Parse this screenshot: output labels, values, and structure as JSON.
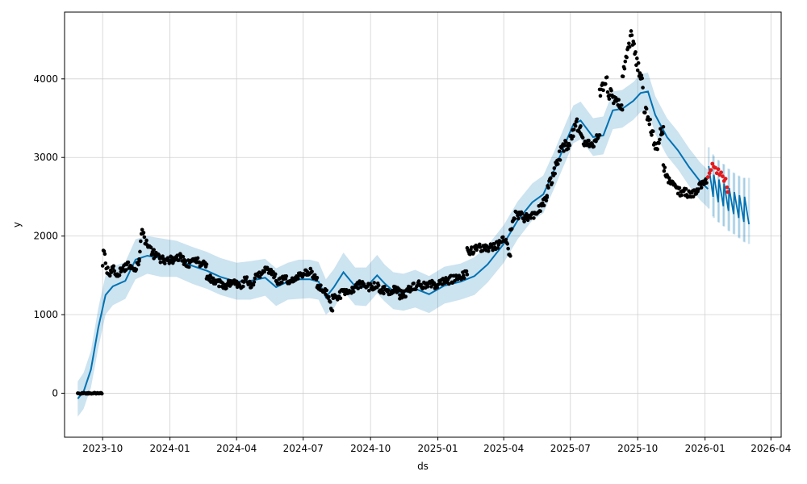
{
  "chart_data": {
    "type": "line",
    "title": "",
    "xlabel": "ds",
    "ylabel": "y",
    "xlim": [
      "2023-08-10",
      "2026-04-15"
    ],
    "ylim": [
      -560,
      4850
    ],
    "grid": true,
    "x_ticks": [
      "2023-10-01",
      "2024-01-01",
      "2024-04-01",
      "2024-07-01",
      "2024-10-01",
      "2025-01-01",
      "2025-04-01",
      "2025-07-01",
      "2025-10-01",
      "2026-01-01",
      "2026-04-01"
    ],
    "x_tick_labels": [
      "2023-10",
      "2024-01",
      "2024-04",
      "2024-07",
      "2024-10",
      "2025-01",
      "2025-04",
      "2025-07",
      "2025-10",
      "2026-01",
      "2026-04"
    ],
    "y_ticks": [
      0,
      1000,
      2000,
      3000,
      4000
    ],
    "y_tick_labels": [
      "0",
      "1000",
      "2000",
      "3000",
      "4000"
    ],
    "colors": {
      "forecast": "#0072b2",
      "interval": "#0072b2",
      "observed": "#000000",
      "actual_future": "#e41a1c"
    },
    "forecast": {
      "x": [
        "2023-08-28",
        "2023-09-05",
        "2023-09-15",
        "2023-09-25",
        "2023-10-05",
        "2023-10-15",
        "2023-11-01",
        "2023-11-15",
        "2023-12-01",
        "2023-12-20",
        "2024-01-10",
        "2024-02-01",
        "2024-02-20",
        "2024-03-10",
        "2024-04-01",
        "2024-04-20",
        "2024-05-10",
        "2024-05-25",
        "2024-06-10",
        "2024-06-25",
        "2024-07-10",
        "2024-07-22",
        "2024-08-01",
        "2024-08-12",
        "2024-08-25",
        "2024-09-10",
        "2024-09-25",
        "2024-10-10",
        "2024-10-20",
        "2024-11-01",
        "2024-11-15",
        "2024-12-01",
        "2024-12-20",
        "2025-01-10",
        "2025-02-01",
        "2025-02-20",
        "2025-03-10",
        "2025-04-01",
        "2025-04-20",
        "2025-05-10",
        "2025-05-25",
        "2025-06-10",
        "2025-06-25",
        "2025-07-05",
        "2025-07-15",
        "2025-08-01",
        "2025-08-15",
        "2025-08-28",
        "2025-09-10",
        "2025-09-25",
        "2025-10-05",
        "2025-10-15",
        "2025-10-25",
        "2025-11-10",
        "2025-11-25",
        "2025-12-10",
        "2025-12-25",
        "2026-01-05"
      ],
      "y": [
        -70,
        20,
        300,
        830,
        1250,
        1360,
        1430,
        1700,
        1750,
        1720,
        1700,
        1620,
        1560,
        1480,
        1420,
        1430,
        1470,
        1350,
        1420,
        1450,
        1450,
        1420,
        1220,
        1350,
        1540,
        1360,
        1350,
        1500,
        1400,
        1300,
        1280,
        1330,
        1260,
        1370,
        1420,
        1490,
        1640,
        1900,
        2200,
        2430,
        2530,
        2860,
        3200,
        3420,
        3470,
        3260,
        3280,
        3600,
        3620,
        3720,
        3820,
        3840,
        3540,
        3260,
        3090,
        2880,
        2700,
        2600
      ]
    },
    "interval": {
      "x": [
        "2023-08-28",
        "2023-09-05",
        "2023-09-15",
        "2023-09-25",
        "2023-10-05",
        "2023-10-15",
        "2023-11-01",
        "2023-11-15",
        "2023-12-01",
        "2023-12-20",
        "2024-01-10",
        "2024-02-01",
        "2024-02-20",
        "2024-03-10",
        "2024-04-01",
        "2024-04-20",
        "2024-05-10",
        "2024-05-25",
        "2024-06-10",
        "2024-06-25",
        "2024-07-10",
        "2024-07-22",
        "2024-08-01",
        "2024-08-12",
        "2024-08-25",
        "2024-09-10",
        "2024-09-25",
        "2024-10-10",
        "2024-10-20",
        "2024-11-01",
        "2024-11-15",
        "2024-12-01",
        "2024-12-20",
        "2025-01-10",
        "2025-02-01",
        "2025-02-20",
        "2025-03-10",
        "2025-04-01",
        "2025-04-20",
        "2025-05-10",
        "2025-05-25",
        "2025-06-10",
        "2025-06-25",
        "2025-07-05",
        "2025-07-15",
        "2025-08-01",
        "2025-08-15",
        "2025-08-28",
        "2025-09-10",
        "2025-09-25",
        "2025-10-05",
        "2025-10-15",
        "2025-10-25",
        "2025-11-10",
        "2025-11-25",
        "2025-12-10",
        "2025-12-25",
        "2026-01-05"
      ],
      "lower": [
        -300,
        -200,
        70,
        570,
        1000,
        1120,
        1200,
        1450,
        1520,
        1480,
        1480,
        1390,
        1330,
        1250,
        1190,
        1190,
        1240,
        1110,
        1190,
        1200,
        1210,
        1190,
        1000,
        1080,
        1300,
        1120,
        1110,
        1270,
        1170,
        1070,
        1050,
        1090,
        1020,
        1140,
        1190,
        1250,
        1410,
        1660,
        1960,
        2200,
        2290,
        2630,
        2960,
        3180,
        3230,
        3020,
        3040,
        3360,
        3380,
        3480,
        3580,
        3600,
        3300,
        3020,
        2850,
        2640,
        2460,
        2360
      ],
      "upper": [
        150,
        260,
        540,
        1080,
        1500,
        1610,
        1670,
        1960,
        2000,
        1970,
        1940,
        1860,
        1800,
        1720,
        1660,
        1680,
        1710,
        1590,
        1660,
        1700,
        1700,
        1670,
        1450,
        1580,
        1790,
        1600,
        1600,
        1760,
        1640,
        1540,
        1520,
        1570,
        1490,
        1610,
        1650,
        1730,
        1880,
        2140,
        2440,
        2670,
        2770,
        3100,
        3440,
        3660,
        3710,
        3500,
        3520,
        3840,
        3860,
        3960,
        4060,
        4080,
        3780,
        3500,
        3330,
        3120,
        2940,
        2840
      ]
    },
    "forecast_future": {
      "x": [
        "2026-01-06",
        "2026-01-12",
        "2026-01-13",
        "2026-01-19",
        "2026-01-20",
        "2026-01-26",
        "2026-01-27",
        "2026-02-02",
        "2026-02-03",
        "2026-02-09",
        "2026-02-10",
        "2026-02-16",
        "2026-02-17",
        "2026-02-23",
        "2026-02-24",
        "2026-03-02"
      ],
      "high": [
        2890,
        2800,
        2780,
        2730,
        2720,
        2680,
        2670,
        2620,
        2610,
        2570,
        2560,
        2530,
        2520,
        2500,
        2500,
        2500
      ],
      "low": [
        2600,
        2500,
        2480,
        2430,
        2420,
        2380,
        2370,
        2320,
        2310,
        2280,
        2270,
        2230,
        2220,
        2180,
        2170,
        2150
      ]
    },
    "observed_segments": [
      {
        "start": "2023-08-28",
        "end": "2023-09-30",
        "values": [
          0,
          0,
          0,
          0,
          0,
          0,
          0,
          0,
          0,
          0,
          0
        ],
        "spread": 8
      },
      {
        "start": "2023-10-01",
        "end": "2023-10-05",
        "values": [
          1600,
          1900,
          1790,
          1650
        ],
        "spread": 40
      },
      {
        "start": "2023-10-06",
        "end": "2023-11-20",
        "values": [
          1560,
          1540,
          1580,
          1520,
          1560,
          1600,
          1620,
          1640,
          1580,
          1700
        ],
        "spread": 50
      },
      {
        "start": "2023-11-20",
        "end": "2023-12-10",
        "values": [
          1740,
          2070,
          1950,
          1900,
          1820,
          1790
        ],
        "spread": 50
      },
      {
        "start": "2023-12-10",
        "end": "2024-02-20",
        "values": [
          1760,
          1720,
          1700,
          1690,
          1700,
          1730,
          1660,
          1640,
          1700,
          1640,
          1620
        ],
        "spread": 50
      },
      {
        "start": "2024-02-20",
        "end": "2024-04-20",
        "values": [
          1500,
          1440,
          1430,
          1380,
          1370,
          1420,
          1380,
          1360,
          1440,
          1420
        ],
        "spread": 50
      },
      {
        "start": "2024-04-20",
        "end": "2024-07-20",
        "values": [
          1330,
          1480,
          1540,
          1580,
          1510,
          1420,
          1450,
          1440,
          1420,
          1500,
          1520,
          1540,
          1460
        ],
        "spread": 50
      },
      {
        "start": "2024-07-20",
        "end": "2024-08-10",
        "values": [
          1380,
          1330,
          1260,
          1050
        ],
        "spread": 40
      },
      {
        "start": "2024-08-10",
        "end": "2024-11-10",
        "values": [
          1230,
          1240,
          1290,
          1300,
          1360,
          1420,
          1350,
          1370,
          1320,
          1300,
          1320,
          1300
        ],
        "spread": 50
      },
      {
        "start": "2024-11-10",
        "end": "2025-02-10",
        "values": [
          1250,
          1280,
          1360,
          1380,
          1370,
          1390,
          1380,
          1420,
          1440,
          1460,
          1480,
          1520
        ],
        "spread": 50
      },
      {
        "start": "2025-02-10",
        "end": "2025-04-10",
        "values": [
          1800,
          1820,
          1860,
          1840,
          1850,
          1870,
          1900,
          1980,
          1750
        ],
        "spread": 50
      },
      {
        "start": "2025-04-10",
        "end": "2025-05-30",
        "values": [
          2100,
          2260,
          2280,
          2220,
          2240,
          2300,
          2390,
          2450
        ],
        "spread": 60
      },
      {
        "start": "2025-05-30",
        "end": "2025-07-15",
        "values": [
          2550,
          2700,
          2850,
          3000,
          3080,
          3150,
          3200,
          3300,
          3420,
          3360
        ],
        "spread": 80
      },
      {
        "start": "2025-07-15",
        "end": "2025-08-10",
        "values": [
          3300,
          3180,
          3150,
          3200,
          3270
        ],
        "spread": 60
      },
      {
        "start": "2025-08-10",
        "end": "2025-09-10",
        "values": [
          3850,
          3900,
          4000,
          3800,
          3780,
          3720,
          3650,
          3600
        ],
        "spread": 80
      },
      {
        "start": "2025-09-10",
        "end": "2025-10-08",
        "values": [
          4000,
          4250,
          4350,
          4600,
          4400,
          4200,
          4050,
          3950
        ],
        "spread": 80
      },
      {
        "start": "2025-10-10",
        "end": "2025-11-05",
        "values": [
          3600,
          3550,
          3450,
          3300,
          3150,
          3100,
          3320,
          3380
        ],
        "spread": 70
      },
      {
        "start": "2025-11-05",
        "end": "2026-01-03",
        "values": [
          2900,
          2720,
          2680,
          2600,
          2550,
          2560,
          2520,
          2540,
          2600,
          2680,
          2700
        ],
        "spread": 50
      }
    ],
    "actual_future": {
      "x": [
        "2026-01-05",
        "2026-01-07",
        "2026-01-09",
        "2026-01-11",
        "2026-01-13",
        "2026-01-15",
        "2026-01-17",
        "2026-01-19",
        "2026-01-21",
        "2026-01-23",
        "2026-01-25",
        "2026-01-27",
        "2026-01-29",
        "2026-01-31",
        "2026-02-01"
      ],
      "y": [
        2750,
        2800,
        2840,
        2920,
        2880,
        2870,
        2800,
        2850,
        2780,
        2810,
        2760,
        2700,
        2730,
        2620,
        2560
      ]
    }
  }
}
